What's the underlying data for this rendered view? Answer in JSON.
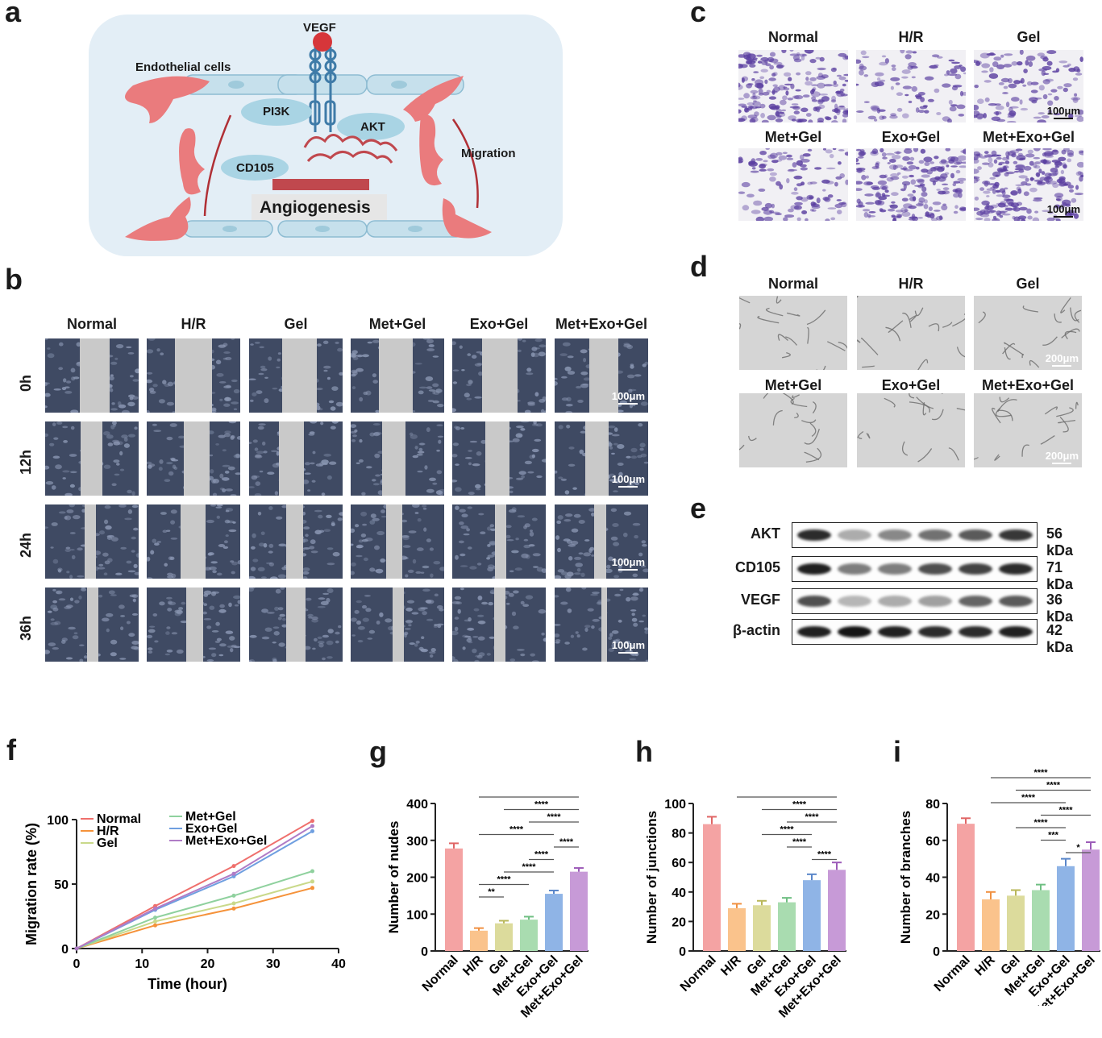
{
  "panels": {
    "a": "a",
    "b": "b",
    "c": "c",
    "d": "d",
    "e": "e",
    "f": "f",
    "g": "g",
    "h": "h",
    "i": "i"
  },
  "schematic": {
    "vegf": "VEGF",
    "endothelial": "Endothelial cells",
    "pi3k": "PI3K",
    "akt": "AKT",
    "cd105": "CD105",
    "migration": "Migration",
    "angiogenesis": "Angiogenesis"
  },
  "groups": [
    "Normal",
    "H/R",
    "Gel",
    "Met+Gel",
    "Exo+Gel",
    "Met+Exo+Gel"
  ],
  "scratch": {
    "times": [
      "0h",
      "12h",
      "24h",
      "36h"
    ],
    "scale": "100μm"
  },
  "transwell": {
    "scale": "100μm"
  },
  "tube": {
    "scale": "200μm"
  },
  "western": {
    "proteins": [
      {
        "name": "AKT",
        "kda": "56 kDa"
      },
      {
        "name": "CD105",
        "kda": "71 kDa"
      },
      {
        "name": "VEGF",
        "kda": "36 kDa"
      },
      {
        "name": "β-actin",
        "kda": "42 kDa"
      }
    ]
  },
  "chart_data": [
    {
      "type": "line",
      "panel": "f",
      "xlabel": "Time (hour)",
      "ylabel": "Migration rate (%)",
      "xlim": [
        0,
        40
      ],
      "ylim": [
        0,
        100
      ],
      "xticks": [
        0,
        10,
        20,
        30,
        40
      ],
      "yticks": [
        0,
        50,
        100
      ],
      "x": [
        0,
        12,
        24,
        36
      ],
      "legend": "top-left",
      "series": [
        {
          "name": "Normal",
          "color": "#ef6f6c",
          "values": [
            0,
            33,
            64,
            99
          ]
        },
        {
          "name": "H/R",
          "color": "#f5923a",
          "values": [
            0,
            18,
            31,
            47
          ]
        },
        {
          "name": "Gel",
          "color": "#c9d98a",
          "values": [
            0,
            21,
            35,
            52
          ]
        },
        {
          "name": "Met+Gel",
          "color": "#8fd19e",
          "values": [
            0,
            24,
            41,
            60
          ]
        },
        {
          "name": "Exo+Gel",
          "color": "#6f9fe0",
          "values": [
            0,
            30,
            56,
            91
          ]
        },
        {
          "name": "Met+Exo+Gel",
          "color": "#b07cc6",
          "values": [
            0,
            31,
            58,
            95
          ]
        }
      ]
    },
    {
      "type": "bar",
      "panel": "g",
      "ylabel": "Number of nudes",
      "ylim": [
        0,
        400
      ],
      "yticks": [
        0,
        100,
        200,
        300,
        400
      ],
      "values": [
        278,
        55,
        75,
        85,
        155,
        215
      ],
      "errors": [
        14,
        7,
        7,
        8,
        9,
        10
      ],
      "sig": [
        {
          "from": 1,
          "to": 2,
          "label": "**"
        },
        {
          "from": 1,
          "to": 3,
          "label": "****"
        },
        {
          "from": 2,
          "to": 4,
          "label": "****"
        },
        {
          "from": 3,
          "to": 4,
          "label": "****"
        },
        {
          "from": 4,
          "to": 5,
          "label": "****"
        },
        {
          "from": 1,
          "to": 4,
          "label": "****"
        },
        {
          "from": 3,
          "to": 5,
          "label": "****"
        },
        {
          "from": 2,
          "to": 5,
          "label": "****"
        },
        {
          "from": 1,
          "to": 5,
          "label": "****"
        }
      ]
    },
    {
      "type": "bar",
      "panel": "h",
      "ylabel": "Number of junctions",
      "ylim": [
        0,
        100
      ],
      "yticks": [
        0,
        20,
        40,
        60,
        80,
        100
      ],
      "values": [
        86,
        29,
        31,
        33,
        48,
        55
      ],
      "errors": [
        5,
        3,
        3,
        3,
        4,
        5
      ],
      "sig": [
        {
          "from": 4,
          "to": 5,
          "label": "****"
        },
        {
          "from": 3,
          "to": 4,
          "label": "****"
        },
        {
          "from": 2,
          "to": 4,
          "label": "****"
        },
        {
          "from": 3,
          "to": 5,
          "label": "****"
        },
        {
          "from": 2,
          "to": 5,
          "label": "****"
        },
        {
          "from": 1,
          "to": 5,
          "label": "****"
        }
      ]
    },
    {
      "type": "bar",
      "panel": "i",
      "ylabel": "Number of branches",
      "ylim": [
        0,
        80
      ],
      "yticks": [
        0,
        20,
        40,
        60,
        80
      ],
      "values": [
        69,
        28,
        30,
        33,
        46,
        55
      ],
      "errors": [
        3,
        4,
        3,
        3,
        4,
        4
      ],
      "sig": [
        {
          "from": 4,
          "to": 5,
          "label": "*"
        },
        {
          "from": 3,
          "to": 4,
          "label": "***"
        },
        {
          "from": 2,
          "to": 4,
          "label": "****"
        },
        {
          "from": 3,
          "to": 5,
          "label": "****"
        },
        {
          "from": 1,
          "to": 4,
          "label": "****"
        },
        {
          "from": 2,
          "to": 5,
          "label": "****"
        },
        {
          "from": 1,
          "to": 5,
          "label": "****"
        }
      ]
    }
  ]
}
